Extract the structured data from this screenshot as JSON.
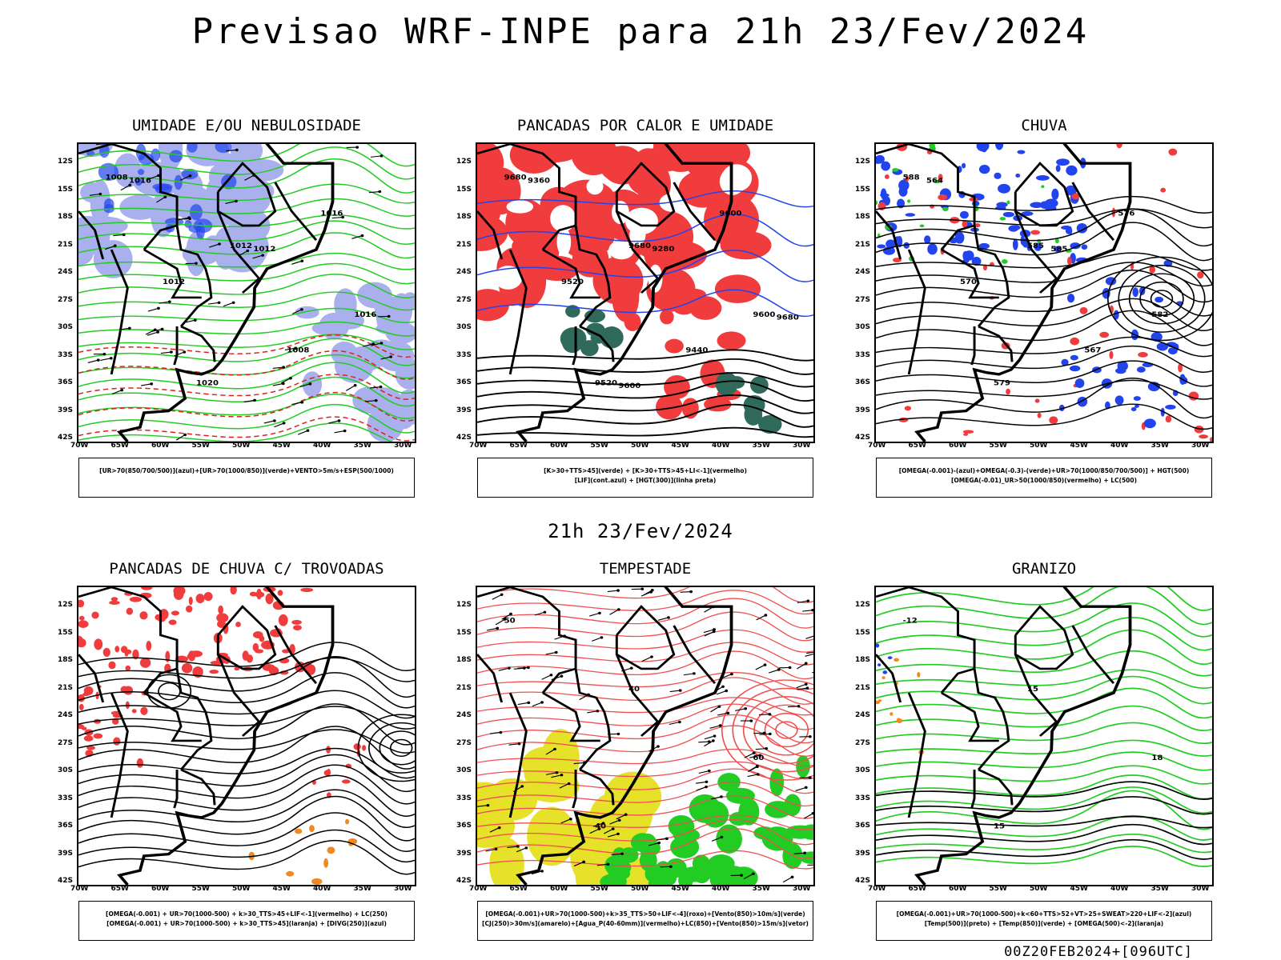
{
  "main_title": "Previsao WRF-INPE  para 21h 23/Fev/2024",
  "mid_title": "21h 23/Fev/2024",
  "footer": "00Z20FEB2024+[096UTC]",
  "lat_labels": [
    "12S",
    "15S",
    "18S",
    "21S",
    "24S",
    "27S",
    "30S",
    "33S",
    "36S",
    "39S",
    "42S"
  ],
  "lon_labels": [
    "70W",
    "65W",
    "60W",
    "55W",
    "50W",
    "45W",
    "40W",
    "35W",
    "30W"
  ],
  "panels": [
    {
      "title": "UMIDADE E/OU NEBULOSIDADE",
      "legend": [
        "[UR>70(850/700/500)](azul)+[UR>70(1000/850)](verde)+VENTO>5m/s+ESP(500/1000)"
      ],
      "contour_labels": [
        "1008",
        "1012",
        "1016",
        "1020",
        "1016",
        "1012",
        "1008",
        "1016",
        "1012"
      ]
    },
    {
      "title": "PANCADAS POR CALOR E UMIDADE",
      "legend": [
        "[K>30+TTS>45](verde) + [K>30+TTS>45+LI<-1](vermelho)",
        "[LIF](cont.azul) + [HGT(300)](linha preta)"
      ],
      "contour_labels": [
        "9680",
        "9680",
        "9600",
        "9520",
        "9600",
        "9520",
        "9440",
        "9360",
        "9280",
        "9680",
        "9600"
      ]
    },
    {
      "title": "CHUVA",
      "legend": [
        "[OMEGA(-0.001)-(azul)+OMEGA(-0.3)-(verde)+UR>70(1000/850/700/500)] + HGT(500)",
        "[OMEGA(-0.01)_UR>50(1000/850)(vermelho) + LC(500)"
      ],
      "contour_labels": [
        "588",
        "585",
        "582",
        "579",
        "576",
        "570",
        "567",
        "564",
        "585"
      ]
    },
    {
      "title": "PANCADAS DE CHUVA C/ TROVOADAS",
      "legend": [
        "[OMEGA(-0.001) + UR>70(1000-500) + k>30_TTS>45+LIF<-1](vermelho) + LC(250)",
        "[OMEGA(-0.001) + UR>70(1000-500) + k>30_TTS>45](laranja) + [DIVG(250)](azul)"
      ]
    },
    {
      "title": "TEMPESTADE",
      "legend": [
        "[OMEGA(-0.001)+UR>70(1000-500)+k>35_TTS>50+LIF<-4](roxo)+[Vento(850)>10m/s](verde)",
        "[CJ(250)>30m/s](amarelo)+[Agua_P(40-60mm)](vermelho)+LC(850)+[Vento(850)>15m/s](vetor)"
      ],
      "contour_labels": [
        "50",
        "40",
        "60",
        "40"
      ]
    },
    {
      "title": "GRANIZO",
      "legend": [
        "[OMEGA(-0.001)+UR>70(1000-500)+k<60+TTS>52+VT>25+SWEAT>220+LIF<-2](azul)",
        "[Temp(500)](preto) + [Temp(850)](verde) + [OMEGA(500)<-2](laranja)"
      ],
      "contour_labels": [
        "-12",
        "15",
        "18",
        "15"
      ]
    }
  ],
  "colors": {
    "red": "#f03c3c",
    "green": "#22cc22",
    "blue": "#2244ee",
    "lightblue": "#aab0ee",
    "yellow": "#e6e22a",
    "darkgreen": "#2f6a5a",
    "orange": "#f08a20"
  }
}
